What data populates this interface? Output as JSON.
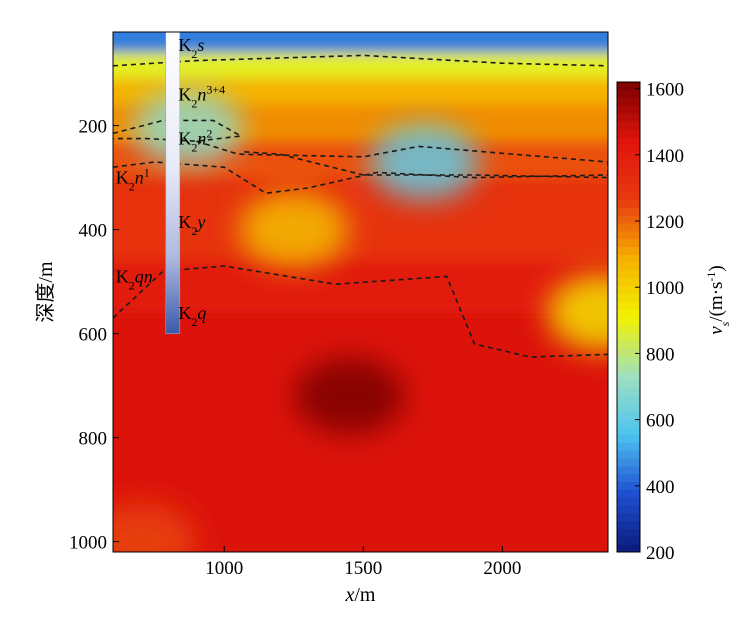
{
  "chart_data": {
    "type": "heatmap",
    "title": "",
    "xlabel": {
      "var": "x",
      "unit": "/m"
    },
    "ylabel": "深度/m",
    "xlim": [
      600,
      2380
    ],
    "ylim": [
      20,
      1020
    ],
    "y_inverted": true,
    "x_ticks": [
      "1000",
      "1500",
      "2000"
    ],
    "x_tick_values": [
      1000,
      1500,
      2000
    ],
    "y_ticks": [
      "200",
      "400",
      "600",
      "800",
      "1000"
    ],
    "y_tick_values": [
      200,
      400,
      600,
      800,
      1000
    ],
    "colorbar": {
      "label": {
        "var": "v",
        "sub": "s",
        "unit": "/(m·s",
        "exp": "-1",
        "close": ")"
      },
      "range": [
        200,
        1620
      ],
      "ticks": [
        "200",
        "400",
        "600",
        "800",
        "1000",
        "1200",
        "1400",
        "1600"
      ],
      "tick_values": [
        200,
        400,
        600,
        800,
        1000,
        1200,
        1400,
        1600
      ],
      "colormap": [
        "#0a1a7a",
        "#1f4fd0",
        "#4dc3f0",
        "#9fe0c0",
        "#f2f200",
        "#f5b000",
        "#e83a10",
        "#e0140c",
        "#7a0000"
      ]
    },
    "velocity_field": {
      "background": 1450,
      "layers": [
        {
          "depth_from": 20,
          "depth_to": 60,
          "velocity": 450
        },
        {
          "depth_from": 60,
          "depth_to": 110,
          "velocity": 880
        },
        {
          "depth_from": 110,
          "depth_to": 160,
          "velocity": 1080
        },
        {
          "depth_from": 160,
          "depth_to": 230,
          "velocity": 1140
        },
        {
          "depth_from": 230,
          "depth_to": 300,
          "velocity": 1230
        },
        {
          "depth_from": 300,
          "depth_to": 460,
          "velocity": 1300
        },
        {
          "depth_from": 460,
          "depth_to": 560,
          "velocity": 1400
        }
      ],
      "anomalies": [
        {
          "x": 870,
          "depth": 205,
          "velocity": 700
        },
        {
          "x": 1720,
          "depth": 270,
          "velocity": 600
        },
        {
          "x": 1250,
          "depth": 400,
          "velocity": 1050
        },
        {
          "x": 2360,
          "depth": 560,
          "velocity": 950
        },
        {
          "x": 1450,
          "depth": 720,
          "velocity": 1620
        },
        {
          "x": 700,
          "depth": 1000,
          "velocity": 1250
        }
      ]
    },
    "boundaries": [
      {
        "points": [
          [
            600,
            85
          ],
          [
            900,
            75
          ],
          [
            1500,
            65
          ],
          [
            2000,
            80
          ],
          [
            2380,
            85
          ]
        ]
      },
      {
        "points": [
          [
            600,
            215
          ],
          [
            780,
            190
          ],
          [
            960,
            190
          ],
          [
            1060,
            220
          ],
          [
            900,
            230
          ],
          [
            720,
            225
          ],
          [
            600,
            225
          ]
        ]
      },
      {
        "points": [
          [
            900,
            230
          ],
          [
            1050,
            255
          ],
          [
            1500,
            260
          ],
          [
            1700,
            240
          ],
          [
            2380,
            270
          ],
          [
            2380,
            300
          ],
          [
            1900,
            295
          ],
          [
            1500,
            295
          ],
          [
            1200,
            255
          ],
          [
            1060,
            250
          ]
        ]
      },
      {
        "points": [
          [
            600,
            280
          ],
          [
            750,
            270
          ],
          [
            1000,
            280
          ],
          [
            1150,
            330
          ],
          [
            1300,
            320
          ],
          [
            1550,
            290
          ],
          [
            1900,
            300
          ],
          [
            2380,
            295
          ]
        ]
      },
      {
        "points": [
          [
            600,
            570
          ],
          [
            780,
            480
          ],
          [
            1000,
            470
          ],
          [
            1400,
            505
          ],
          [
            1800,
            490
          ],
          [
            1900,
            620
          ],
          [
            2100,
            645
          ],
          [
            2380,
            640
          ]
        ]
      }
    ],
    "borehole": {
      "x": 815,
      "depth_from": 20,
      "depth_to": 600
    },
    "strata_labels": [
      {
        "base": "K",
        "sub": "2",
        "var": "s",
        "sup": "",
        "x": 835,
        "depth": 45
      },
      {
        "base": "K",
        "sub": "2",
        "var": "n",
        "sup": "3+4",
        "x": 835,
        "depth": 140
      },
      {
        "base": "K",
        "sub": "2",
        "var": "n",
        "sup": "2",
        "x": 835,
        "depth": 225
      },
      {
        "base": "K",
        "sub": "2",
        "var": "n",
        "sup": "1",
        "x": 610,
        "depth": 300
      },
      {
        "base": "K",
        "sub": "2",
        "var": "y",
        "sup": "",
        "x": 835,
        "depth": 385
      },
      {
        "base": "K",
        "sub": "2",
        "var": "qn",
        "sup": "",
        "x": 610,
        "depth": 490
      },
      {
        "base": "K",
        "sub": "2",
        "var": "q",
        "sup": "",
        "x": 835,
        "depth": 560
      }
    ]
  }
}
